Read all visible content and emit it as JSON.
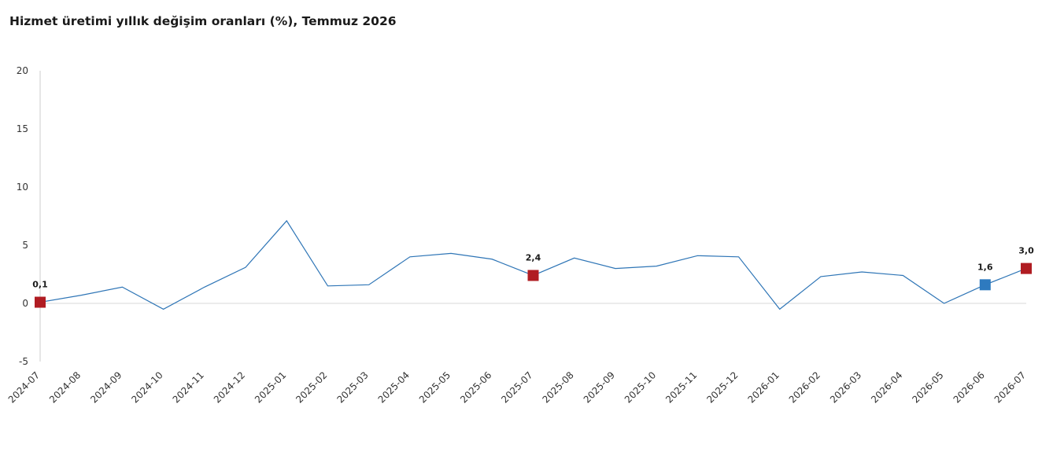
{
  "chart_data": {
    "type": "line",
    "title": "Hizmet üretimi yıllık değişim oranları (%), Temmuz 2026",
    "xlabel": "",
    "ylabel": "",
    "ylim": [
      -5,
      20
    ],
    "yticks": [
      -5,
      0,
      5,
      10,
      15,
      20
    ],
    "grid": false,
    "legend": "none",
    "categories": [
      "2024-07",
      "2024-08",
      "2024-09",
      "2024-10",
      "2024-11",
      "2024-12",
      "2025-01",
      "2025-02",
      "2025-03",
      "2025-04",
      "2025-05",
      "2025-06",
      "2025-07",
      "2025-08",
      "2025-09",
      "2025-10",
      "2025-11",
      "2025-12",
      "2026-01",
      "2026-02",
      "2026-03",
      "2026-04",
      "2026-05",
      "2026-06",
      "2026-07"
    ],
    "series": [
      {
        "values": [
          0.1,
          0.7,
          1.4,
          -0.5,
          1.4,
          3.1,
          7.1,
          1.5,
          1.6,
          4.0,
          4.3,
          3.8,
          2.4,
          3.9,
          3.0,
          3.2,
          4.1,
          4.0,
          -0.5,
          2.3,
          2.7,
          2.4,
          0.0,
          1.6,
          3.0
        ],
        "color": "#2e75b6"
      }
    ],
    "highlighted_points": [
      {
        "category": "2024-07",
        "value": 0.1,
        "label": "0,1",
        "color": "#b01c22"
      },
      {
        "category": "2025-07",
        "value": 2.4,
        "label": "2,4",
        "color": "#b01c22"
      },
      {
        "category": "2026-06",
        "value": 1.6,
        "label": "1,6",
        "color": "#2e7abf"
      },
      {
        "category": "2026-07",
        "value": 3.0,
        "label": "3,0",
        "color": "#b01c22"
      }
    ]
  }
}
